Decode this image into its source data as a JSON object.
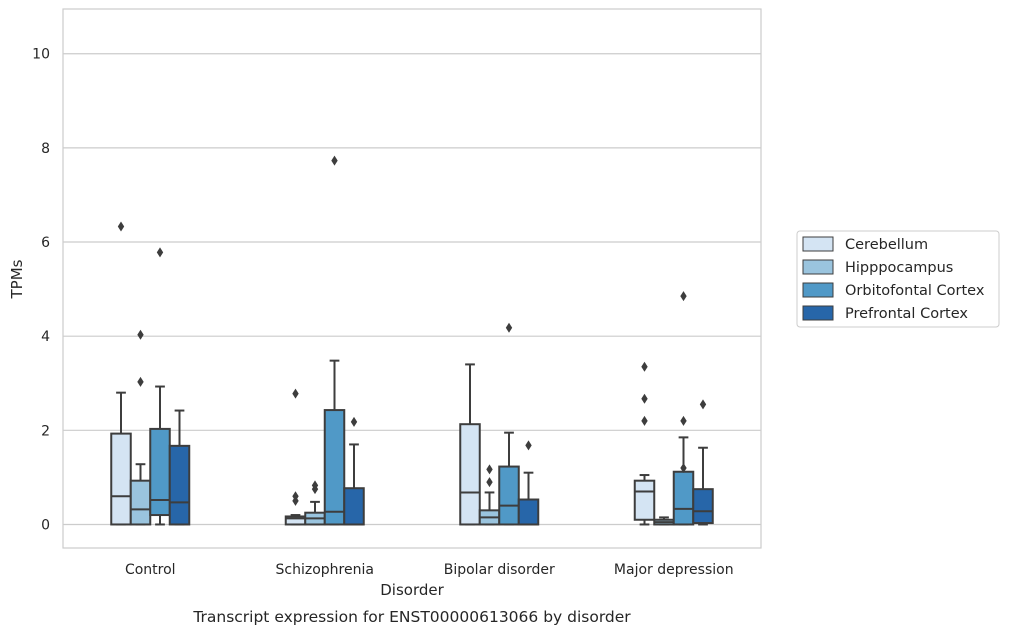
{
  "caption": "Transcript expression for ENST00000613066 by disorder",
  "chart_data": {
    "type": "box",
    "xlabel": "Disorder",
    "ylabel": "TPMs",
    "ylim": [
      -0.5,
      10.95
    ],
    "yticks": [
      0,
      2,
      4,
      6,
      8,
      10
    ],
    "grid": "horizontal",
    "legend_position": "right",
    "categories": [
      "Control",
      "Schizophrenia",
      "Bipolar disorder",
      "Major depression"
    ],
    "series": [
      {
        "name": "Cerebellum",
        "color": "#d4e4f3",
        "boxes": [
          {
            "whislo": 0.0,
            "q1": 0.0,
            "med": 0.6,
            "q3": 1.93,
            "whishi": 2.8,
            "fliers": [
              6.33
            ]
          },
          {
            "whislo": 0.0,
            "q1": 0.0,
            "med": 0.13,
            "q3": 0.17,
            "whishi": 0.2,
            "fliers": [
              0.5,
              0.6,
              2.78
            ]
          },
          {
            "whislo": 0.0,
            "q1": 0.0,
            "med": 0.68,
            "q3": 2.13,
            "whishi": 3.4,
            "fliers": []
          },
          {
            "whislo": 0.0,
            "q1": 0.1,
            "med": 0.7,
            "q3": 0.93,
            "whishi": 1.05,
            "fliers": [
              2.2,
              2.67,
              3.35
            ]
          }
        ]
      },
      {
        "name": "Hipppocampus",
        "color": "#9ac4de",
        "boxes": [
          {
            "whislo": 0.0,
            "q1": 0.0,
            "med": 0.32,
            "q3": 0.93,
            "whishi": 1.28,
            "fliers": [
              3.03,
              4.03
            ]
          },
          {
            "whislo": 0.0,
            "q1": 0.0,
            "med": 0.13,
            "q3": 0.25,
            "whishi": 0.48,
            "fliers": [
              0.75,
              0.83
            ]
          },
          {
            "whislo": 0.0,
            "q1": 0.0,
            "med": 0.15,
            "q3": 0.3,
            "whishi": 0.68,
            "fliers": [
              0.9,
              1.17
            ]
          },
          {
            "whislo": 0.0,
            "q1": 0.0,
            "med": 0.05,
            "q3": 0.1,
            "whishi": 0.15,
            "fliers": []
          }
        ]
      },
      {
        "name": "Orbitofontal Cortex",
        "color": "#5099c7",
        "boxes": [
          {
            "whislo": 0.0,
            "q1": 0.2,
            "med": 0.52,
            "q3": 2.03,
            "whishi": 2.93,
            "fliers": [
              5.78
            ]
          },
          {
            "whislo": 0.0,
            "q1": 0.0,
            "med": 0.27,
            "q3": 2.43,
            "whishi": 3.48,
            "fliers": [
              7.73
            ]
          },
          {
            "whislo": 0.0,
            "q1": 0.0,
            "med": 0.4,
            "q3": 1.23,
            "whishi": 1.95,
            "fliers": [
              4.18
            ]
          },
          {
            "whislo": 0.0,
            "q1": 0.0,
            "med": 0.33,
            "q3": 1.12,
            "whishi": 1.85,
            "fliers": [
              1.2,
              2.2,
              4.85
            ]
          }
        ]
      },
      {
        "name": "Prefrontal Cortex",
        "color": "#2766a9",
        "boxes": [
          {
            "whislo": 0.0,
            "q1": 0.0,
            "med": 0.47,
            "q3": 1.67,
            "whishi": 2.42,
            "fliers": []
          },
          {
            "whislo": 0.0,
            "q1": 0.0,
            "med": 0.0,
            "q3": 0.77,
            "whishi": 1.7,
            "fliers": [
              2.18
            ]
          },
          {
            "whislo": 0.0,
            "q1": 0.0,
            "med": 0.0,
            "q3": 0.53,
            "whishi": 1.1,
            "fliers": [
              1.68
            ]
          },
          {
            "whislo": 0.0,
            "q1": 0.03,
            "med": 0.28,
            "q3": 0.75,
            "whishi": 1.63,
            "fliers": [
              2.55
            ]
          }
        ]
      }
    ]
  }
}
